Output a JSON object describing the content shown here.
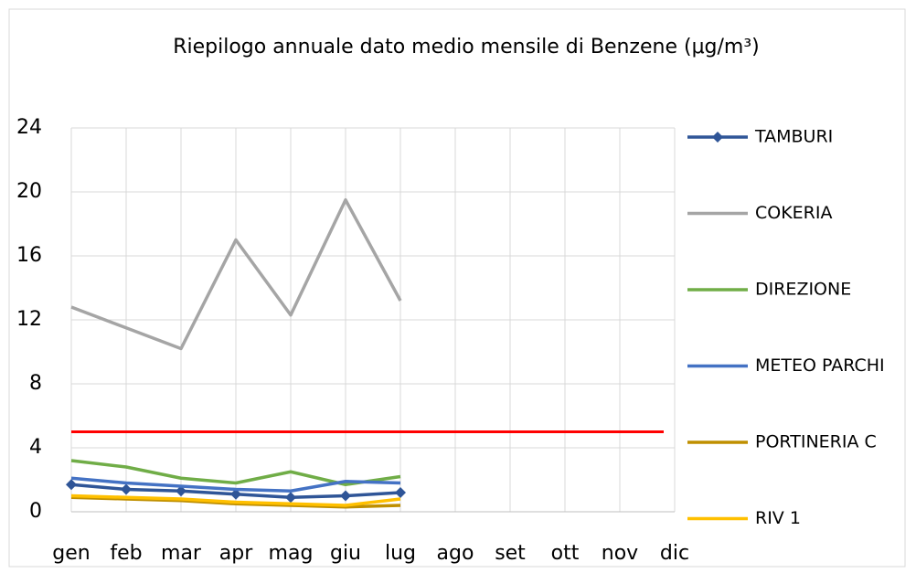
{
  "chart_data": {
    "type": "line",
    "title": "Riepilogo annuale dato medio mensile di Benzene (μg/m³)",
    "categories": [
      "gen",
      "feb",
      "mar",
      "apr",
      "mag",
      "giu",
      "lug",
      "ago",
      "set",
      "ott",
      "nov",
      "dic"
    ],
    "series": [
      {
        "name": "TAMBURI",
        "color": "#2f5597",
        "marker": "diamond",
        "values": [
          1.7,
          1.4,
          1.3,
          1.1,
          0.9,
          1.0,
          1.2,
          null,
          null,
          null,
          null,
          null
        ]
      },
      {
        "name": "COKERIA",
        "color": "#a5a5a5",
        "values": [
          12.8,
          11.5,
          10.2,
          17.0,
          12.3,
          19.5,
          13.2,
          null,
          null,
          null,
          null,
          null
        ]
      },
      {
        "name": "DIREZIONE",
        "color": "#70ad47",
        "values": [
          3.2,
          2.8,
          2.1,
          1.8,
          2.5,
          1.7,
          2.2,
          null,
          null,
          null,
          null,
          null
        ]
      },
      {
        "name": "METEO PARCHI",
        "color": "#4472c4",
        "values": [
          2.1,
          1.8,
          1.6,
          1.4,
          1.3,
          1.9,
          1.8,
          null,
          null,
          null,
          null,
          null
        ]
      },
      {
        "name": "PORTINERIA C",
        "color": "#bf8f00",
        "values": [
          0.9,
          0.8,
          0.7,
          0.5,
          0.4,
          0.3,
          0.4,
          null,
          null,
          null,
          null,
          null
        ]
      },
      {
        "name": "RIV 1",
        "color": "#ffc000",
        "values": [
          1.0,
          0.9,
          0.8,
          0.6,
          0.5,
          0.4,
          0.8,
          null,
          null,
          null,
          null,
          null
        ]
      }
    ],
    "reference_line": {
      "value": 5,
      "color": "#ff0000"
    },
    "ylim": [
      0,
      24
    ],
    "yticks": [
      0,
      4,
      8,
      12,
      16,
      20,
      24
    ],
    "grid": true,
    "legend": "right"
  }
}
